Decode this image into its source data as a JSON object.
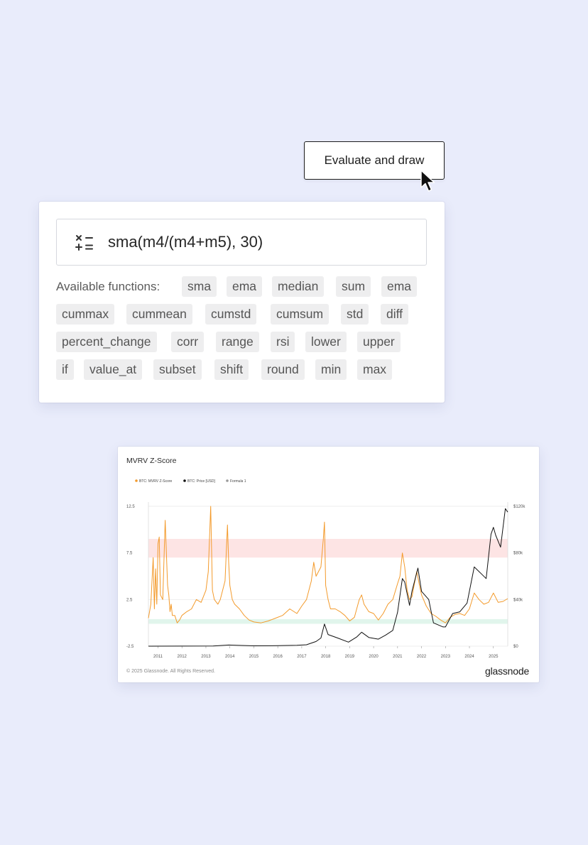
{
  "button": {
    "label": "Evaluate and draw"
  },
  "formula": {
    "expression": "sma(m4/(m4+m5), 30)",
    "functions_label": "Available functions:"
  },
  "functions": [
    "sma",
    "ema",
    "median",
    "sum",
    "ema",
    "cummax",
    "cummean",
    "cumstd",
    "cumsum",
    "std",
    "diff",
    "percent_change",
    "corr",
    "range",
    "rsi",
    "lower",
    "upper",
    "if",
    "value_at",
    "subset",
    "shift",
    "round",
    "min",
    "max"
  ],
  "chart": {
    "title": "MVRV Z-Score",
    "copyright": "© 2025 Glassnode. All Rights Reserved.",
    "brand": "glassnode"
  },
  "chart_data": {
    "type": "line",
    "title": "MVRV Z-Score",
    "legend": {
      "placement": "top-left",
      "entries": [
        "BTC: MVRV Z-Score",
        "BTC: Price [USD]",
        "Formula 1"
      ]
    },
    "colors": {
      "zscore": "#f39a2b",
      "price": "#111111",
      "formula": "#9a9a9a",
      "red_band": "#fde4e4",
      "green_band": "#e1f5ec"
    },
    "x_ticks": [
      "2011",
      "2012",
      "2013",
      "2014",
      "2015",
      "2016",
      "2017",
      "2018",
      "2019",
      "2020",
      "2021",
      "2022",
      "2023",
      "2024",
      "2025"
    ],
    "xlim": [
      2010.6,
      2025.6
    ],
    "left_axis": {
      "ticks": [
        "12.5",
        "7.5",
        "2.5",
        "-2.5"
      ],
      "tick_values": [
        12.5,
        7.5,
        2.5,
        -2.5
      ],
      "range": [
        -2.5,
        12.5
      ]
    },
    "right_axis": {
      "ticks": [
        "$120k",
        "$80k",
        "$40k",
        "$0"
      ],
      "tick_values": [
        120000,
        80000,
        40000,
        0
      ],
      "range": [
        0,
        120000
      ]
    },
    "bands": [
      {
        "axis": "left",
        "from": 7.0,
        "to": 9.0
      },
      {
        "axis": "left",
        "from": -0.1,
        "to": 0.4
      }
    ],
    "series": [
      {
        "name": "BTC: MVRV Z-Score",
        "axis": "left",
        "x": [
          2010.6,
          2010.7,
          2010.8,
          2010.85,
          2010.9,
          2010.95,
          2011.0,
          2011.05,
          2011.1,
          2011.2,
          2011.3,
          2011.4,
          2011.45,
          2011.5,
          2011.55,
          2011.6,
          2011.7,
          2011.8,
          2011.9,
          2012.0,
          2012.2,
          2012.4,
          2012.6,
          2012.8,
          2013.0,
          2013.1,
          2013.2,
          2013.27,
          2013.35,
          2013.5,
          2013.6,
          2013.8,
          2013.9,
          2013.95,
          2014.0,
          2014.1,
          2014.2,
          2014.4,
          2014.6,
          2014.8,
          2015.0,
          2015.3,
          2015.6,
          2015.9,
          2016.2,
          2016.5,
          2016.8,
          2017.0,
          2017.2,
          2017.4,
          2017.5,
          2017.6,
          2017.8,
          2017.9,
          2017.95,
          2018.0,
          2018.1,
          2018.2,
          2018.4,
          2018.6,
          2018.8,
          2019.0,
          2019.2,
          2019.4,
          2019.5,
          2019.6,
          2019.8,
          2020.0,
          2020.2,
          2020.4,
          2020.6,
          2020.8,
          2021.0,
          2021.1,
          2021.2,
          2021.3,
          2021.4,
          2021.5,
          2021.6,
          2021.8,
          2021.9,
          2022.0,
          2022.2,
          2022.4,
          2022.6,
          2022.8,
          2023.0,
          2023.2,
          2023.4,
          2023.6,
          2023.8,
          2024.0,
          2024.2,
          2024.4,
          2024.6,
          2024.8,
          2025.0,
          2025.2,
          2025.4,
          2025.6
        ],
        "y": [
          0.5,
          2.0,
          7.0,
          1.5,
          5.8,
          2.0,
          8.5,
          9.2,
          3.0,
          2.5,
          11.0,
          4.0,
          3.0,
          1.2,
          2.0,
          0.8,
          0.8,
          0.0,
          0.3,
          0.8,
          1.2,
          1.5,
          2.5,
          2.2,
          3.5,
          5.5,
          12.5,
          3.5,
          2.5,
          2.0,
          2.5,
          4.5,
          10.5,
          6.5,
          4.0,
          2.5,
          2.0,
          1.5,
          0.8,
          0.3,
          0.1,
          0.0,
          0.2,
          0.5,
          0.8,
          1.5,
          1.0,
          1.8,
          2.5,
          4.5,
          6.5,
          5.0,
          6.0,
          9.0,
          10.8,
          4.0,
          2.5,
          1.5,
          1.5,
          1.2,
          0.8,
          0.2,
          0.6,
          2.5,
          3.0,
          2.0,
          1.2,
          1.0,
          0.3,
          1.0,
          2.0,
          2.5,
          4.2,
          5.0,
          7.5,
          6.0,
          3.5,
          2.5,
          2.8,
          5.5,
          4.2,
          3.0,
          1.8,
          1.0,
          0.7,
          0.3,
          0.0,
          0.6,
          0.9,
          1.0,
          0.8,
          1.5,
          3.2,
          2.5,
          2.0,
          2.2,
          3.2,
          2.2,
          2.3,
          2.6
        ]
      },
      {
        "name": "BTC: Price [USD]",
        "axis": "right",
        "x": [
          2010.6,
          2012.0,
          2013.3,
          2013.95,
          2014.5,
          2015.0,
          2016.0,
          2016.8,
          2017.2,
          2017.6,
          2017.8,
          2017.95,
          2018.1,
          2018.5,
          2018.95,
          2019.3,
          2019.5,
          2019.8,
          2020.2,
          2020.5,
          2020.8,
          2021.0,
          2021.2,
          2021.3,
          2021.5,
          2021.6,
          2021.85,
          2022.0,
          2022.3,
          2022.5,
          2022.9,
          2023.0,
          2023.3,
          2023.6,
          2023.9,
          2024.2,
          2024.5,
          2024.7,
          2024.9,
          2025.0,
          2025.1,
          2025.3,
          2025.5,
          2025.6
        ],
        "y": [
          0,
          50,
          200,
          1000,
          600,
          300,
          400,
          800,
          1200,
          4000,
          7000,
          19000,
          10000,
          7000,
          3500,
          8000,
          12000,
          7500,
          6000,
          9500,
          13500,
          29000,
          58000,
          55000,
          35000,
          47000,
          67000,
          47000,
          40000,
          20000,
          16500,
          16500,
          28000,
          29500,
          37000,
          68000,
          62000,
          58000,
          96000,
          102000,
          95000,
          85000,
          118000,
          115000
        ]
      }
    ]
  }
}
